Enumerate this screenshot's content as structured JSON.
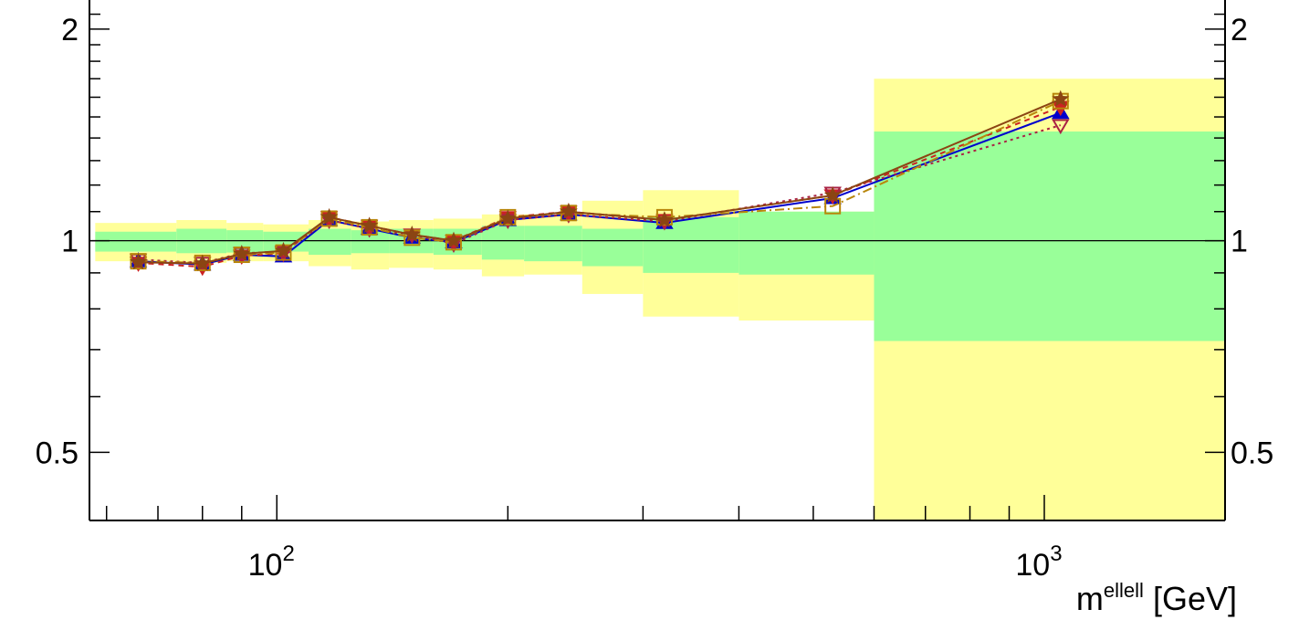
{
  "chart_data": {
    "type": "line",
    "title": "",
    "xlabel": "m",
    "xlabel_superscript": "ellell",
    "xlabel_unit": " [GeV]",
    "x_scale": "log",
    "y_scale": "log",
    "xlim": [
      57,
      1720
    ],
    "ylim": [
      0.4,
      2.2
    ],
    "grid": false,
    "legend": "none",
    "reference_line": 1,
    "x_tick_labels": [
      {
        "value": 100,
        "base": "10",
        "exp": "2"
      },
      {
        "value": 1000,
        "base": "10",
        "exp": "3"
      }
    ],
    "y_tick_labels": [
      {
        "value": 0.5,
        "label": "0.5"
      },
      {
        "value": 1,
        "label": "1"
      },
      {
        "value": 2,
        "label": "2"
      }
    ],
    "bands": [
      {
        "x0": 58,
        "x1": 74,
        "inner": [
          0.965,
          1.03
        ],
        "outer": [
          0.935,
          1.06
        ]
      },
      {
        "x0": 74,
        "x1": 86,
        "inner": [
          0.96,
          1.04
        ],
        "outer": [
          0.93,
          1.07
        ]
      },
      {
        "x0": 86,
        "x1": 96,
        "inner": [
          0.962,
          1.035
        ],
        "outer": [
          0.935,
          1.06
        ]
      },
      {
        "x0": 96,
        "x1": 110,
        "inner": [
          0.965,
          1.03
        ],
        "outer": [
          0.935,
          1.055
        ]
      },
      {
        "x0": 110,
        "x1": 125,
        "inner": [
          0.955,
          1.04
        ],
        "outer": [
          0.92,
          1.07
        ]
      },
      {
        "x0": 125,
        "x1": 140,
        "inner": [
          0.96,
          1.035
        ],
        "outer": [
          0.91,
          1.065
        ]
      },
      {
        "x0": 140,
        "x1": 160,
        "inner": [
          0.96,
          1.04
        ],
        "outer": [
          0.915,
          1.07
        ]
      },
      {
        "x0": 160,
        "x1": 185,
        "inner": [
          0.955,
          1.04
        ],
        "outer": [
          0.91,
          1.075
        ]
      },
      {
        "x0": 185,
        "x1": 210,
        "inner": [
          0.94,
          1.05
        ],
        "outer": [
          0.89,
          1.09
        ]
      },
      {
        "x0": 210,
        "x1": 250,
        "inner": [
          0.935,
          1.05
        ],
        "outer": [
          0.895,
          1.09
        ]
      },
      {
        "x0": 250,
        "x1": 300,
        "inner": [
          0.92,
          1.04
        ],
        "outer": [
          0.84,
          1.14
        ]
      },
      {
        "x0": 300,
        "x1": 400,
        "inner": [
          0.9,
          1.08
        ],
        "outer": [
          0.78,
          1.18
        ]
      },
      {
        "x0": 400,
        "x1": 600,
        "inner": [
          0.895,
          1.1
        ],
        "outer": [
          0.77,
          1.1
        ]
      },
      {
        "x0": 600,
        "x1": 1720,
        "inner": [
          0.72,
          1.43
        ],
        "outer": [
          0.3,
          1.7
        ]
      }
    ],
    "series": [
      {
        "color": "#0000cc",
        "dash": "",
        "marker": "triangle-up",
        "filled": true,
        "x": [
          66,
          80,
          90,
          102,
          117,
          132,
          150,
          170,
          200,
          240,
          320,
          530,
          1050
        ],
        "y": [
          0.935,
          0.925,
          0.955,
          0.95,
          1.07,
          1.04,
          1.01,
          0.995,
          1.07,
          1.09,
          1.06,
          1.15,
          1.52
        ]
      },
      {
        "color": "#cc2222",
        "dash": "6 5",
        "marker": "triangle-down",
        "filled": true,
        "x": [
          66,
          80,
          90,
          102,
          117,
          132,
          150,
          170,
          200,
          240,
          320,
          530,
          1050
        ],
        "y": [
          0.93,
          0.918,
          0.952,
          0.96,
          1.08,
          1.05,
          1.02,
          1.0,
          1.08,
          1.1,
          1.07,
          1.16,
          1.55
        ]
      },
      {
        "color": "#aa2244",
        "dash": "3 4",
        "marker": "triangle-down",
        "filled": false,
        "x": [
          66,
          80,
          90,
          102,
          117,
          132,
          150,
          170,
          200,
          240,
          320,
          530,
          1050
        ],
        "y": [
          0.94,
          0.93,
          0.96,
          0.965,
          1.07,
          1.04,
          1.02,
          0.99,
          1.07,
          1.09,
          1.065,
          1.17,
          1.46
        ]
      },
      {
        "color": "#b8860b",
        "dash": "10 4 2 4",
        "marker": "square",
        "filled": false,
        "x": [
          66,
          80,
          90,
          102,
          117,
          132,
          150,
          170,
          200,
          240,
          320,
          530,
          1050
        ],
        "y": [
          0.935,
          0.93,
          0.955,
          0.962,
          1.075,
          1.045,
          1.01,
          0.995,
          1.08,
          1.095,
          1.08,
          1.12,
          1.58
        ]
      },
      {
        "color": "#8b4513",
        "dash": "",
        "marker": "star",
        "filled": true,
        "x": [
          66,
          80,
          90,
          102,
          117,
          132,
          150,
          170,
          200,
          240,
          320,
          530,
          1050
        ],
        "y": [
          0.932,
          0.928,
          0.958,
          0.967,
          1.08,
          1.05,
          1.02,
          1.0,
          1.075,
          1.1,
          1.07,
          1.16,
          1.59
        ]
      }
    ]
  },
  "colors": {
    "inner_band": "#99ff99",
    "outer_band": "#ffff99",
    "axis": "#000000"
  }
}
